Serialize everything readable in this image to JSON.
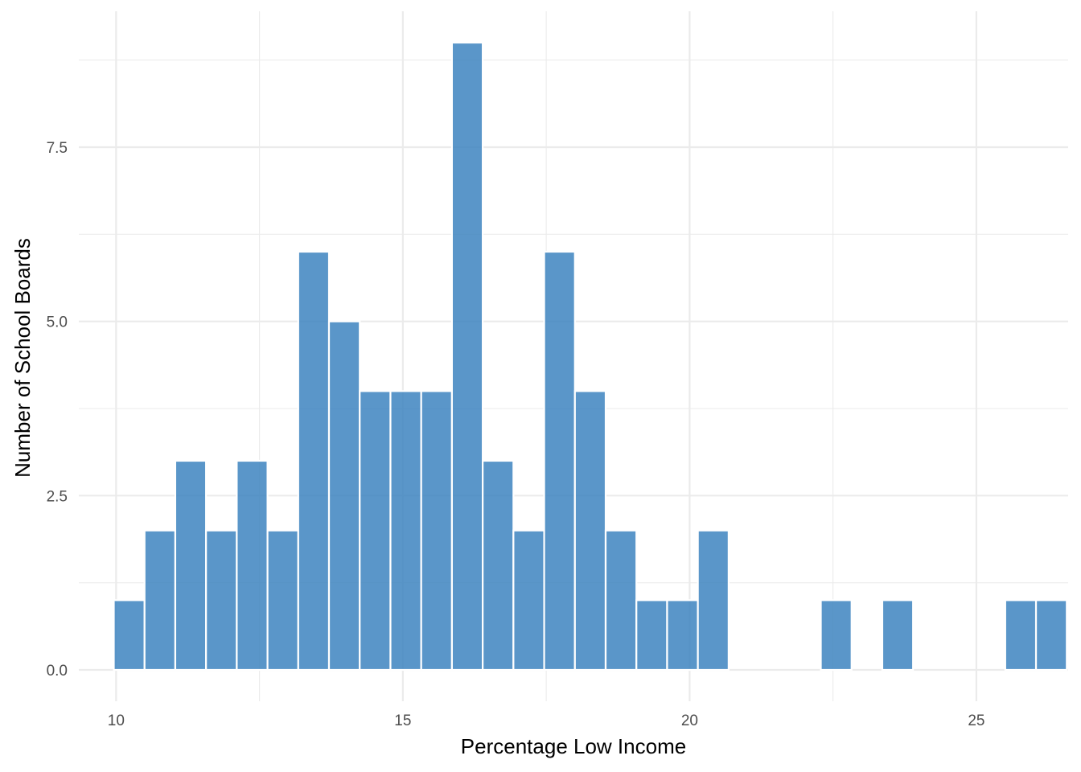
{
  "chart_data": {
    "type": "bar",
    "subtype": "histogram",
    "title": "",
    "xlabel": "Percentage Low Income",
    "ylabel": "Number of School Boards",
    "xlim": [
      9.35,
      26.6
    ],
    "ylim": [
      -0.45,
      9.45
    ],
    "x_ticks": [
      10,
      15,
      20,
      25
    ],
    "x_tick_labels": [
      "10",
      "15",
      "20",
      "25"
    ],
    "y_ticks": [
      0,
      2.5,
      5,
      7.5
    ],
    "y_tick_labels": [
      "0.0",
      "2.5",
      "5.0",
      "7.5"
    ],
    "bin_width": 0.536,
    "bin_start": 9.96,
    "counts": [
      1,
      2,
      3,
      2,
      3,
      2,
      6,
      5,
      4,
      4,
      4,
      9,
      3,
      2,
      6,
      4,
      2,
      1,
      1,
      2,
      0,
      0,
      0,
      1,
      0,
      1,
      0,
      0,
      0,
      1,
      1
    ],
    "bar_color": "#3f85c0",
    "bar_edge_color": "#ffffff",
    "grid": true,
    "grid_color": "#ebebeb",
    "legend": "none"
  }
}
